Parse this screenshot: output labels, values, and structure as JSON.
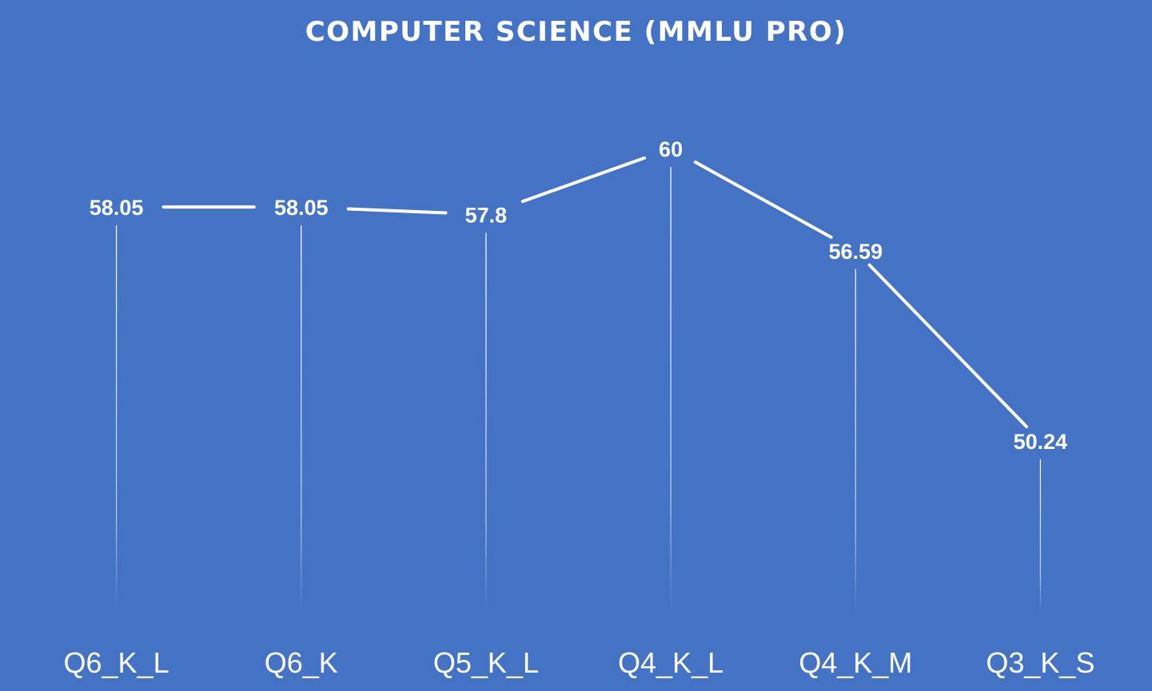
{
  "chart_data": {
    "type": "line",
    "title": "COMPUTER SCIENCE (MMLU PRO)",
    "xlabel": "",
    "ylabel": "",
    "categories": [
      "Q6_K_L",
      "Q6_K",
      "Q5_K_L",
      "Q4_K_L",
      "Q4_K_M",
      "Q3_K_S"
    ],
    "series": [
      {
        "values": [
          58.05,
          58.05,
          57.8,
          60,
          56.59,
          50.24
        ],
        "labels": [
          "58.05",
          "58.05",
          "57.8",
          "60",
          "56.59",
          "50.24"
        ]
      }
    ],
    "ylim": [
      45,
      62
    ],
    "grid": false,
    "legend": "none",
    "drop_lines": true,
    "data_labels": true,
    "colors": {
      "background": "#4472C4",
      "line": "#FFFFFF",
      "text": "#FFFFFF",
      "drop_line": "#FFFFFF"
    }
  }
}
